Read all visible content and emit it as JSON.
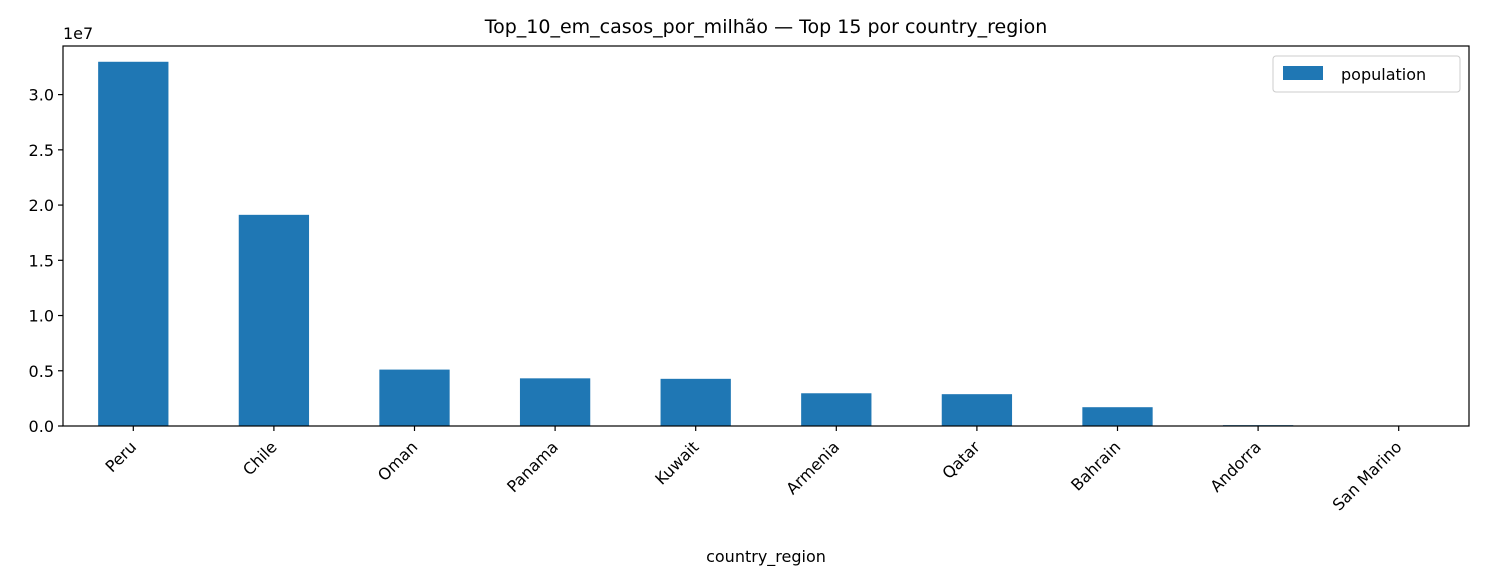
{
  "chart_data": {
    "type": "bar",
    "title": "Top_10_em_casos_por_milhão — Top 15 por country_region",
    "xlabel": "country_region",
    "ylabel": "",
    "categories": [
      "Peru",
      "Chile",
      "Oman",
      "Panama",
      "Kuwait",
      "Armenia",
      "Qatar",
      "Bahrain",
      "Andorra",
      "San Marino"
    ],
    "series": [
      {
        "name": "population",
        "color": "#1f77b4",
        "values": [
          32971846,
          19116209,
          5106622,
          4314768,
          4270563,
          2963234,
          2881060,
          1701583,
          77265,
          33938
        ]
      }
    ],
    "ylim": [
      0,
      34400000
    ],
    "yticks": [
      0,
      5000000,
      10000000,
      15000000,
      20000000,
      25000000,
      30000000
    ],
    "ytick_labels": [
      "0.0",
      "0.5",
      "1.0",
      "1.5",
      "2.0",
      "2.5",
      "3.0"
    ],
    "y_offset_label": "1e7",
    "legend_position": "top-right",
    "grid": false
  }
}
